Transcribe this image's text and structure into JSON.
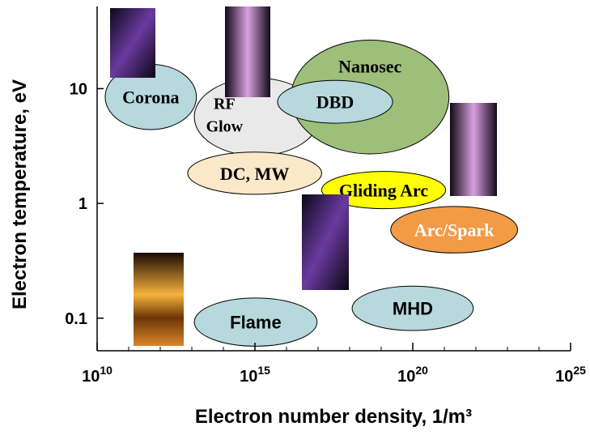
{
  "chart_data": {
    "type": "region",
    "x_label": "Electron number density, 1/m³",
    "y_label": "Electron temperature, eV",
    "log_x": true,
    "log_y": true,
    "xlim": [
      10000000000,
      10000000000000000000000000
    ],
    "ylim": [
      0.052,
      52
    ],
    "xticks": [
      {
        "value": 10000000000,
        "label": "10",
        "exponent": "10"
      },
      {
        "value": 1000000000000000,
        "label": "10",
        "exponent": "15"
      },
      {
        "value": 100000000000000000000,
        "label": "10",
        "exponent": "20"
      },
      {
        "value": 10000000000000000000000000,
        "label": "10",
        "exponent": "25"
      }
    ],
    "xminorticks": [
      100000000000.0,
      1000000000000.0,
      10000000000000.0,
      100000000000000.0,
      1e+16,
      1e+17,
      1e+18,
      1e+19,
      1e+21,
      1e+22,
      1e+23,
      1e+24
    ],
    "yticks": [
      0.1,
      1,
      10
    ],
    "regions": [
      {
        "label": "Corona",
        "x": [
          18000000000.0,
          14000000000000.0
        ],
        "y": [
          4.4,
          16.3
        ],
        "color": "#b7d8dd",
        "font": "serif"
      },
      {
        "label": [
          "RF",
          "Glow"
        ],
        "x": [
          12000000000000.0,
          1.1e+17
        ],
        "y": [
          2.6,
          12.4
        ],
        "color": "#e9e9e9",
        "font": "serif"
      },
      {
        "label": "Nanosec",
        "x": [
          1.4e+16,
          1.4e+21
        ],
        "y": [
          2.7,
          26.5
        ],
        "color": "#9ebf7a",
        "font": "serif"
      },
      {
        "label": "DBD",
        "x": [
          5200000000000000.0,
          2.3e+19
        ],
        "y": [
          5.0,
          11.8
        ],
        "color": "#b7d8dd",
        "font": "serif"
      },
      {
        "label": "DC, MW",
        "x": [
          7400000000000.0,
          1.3e+17
        ],
        "y": [
          1.2,
          2.8
        ],
        "color": "#fbe8c8",
        "font": "serif"
      },
      {
        "label": "Gliding Arc",
        "x": [
          1.3e+17,
          1.1e+21
        ],
        "y": [
          0.9,
          1.9
        ],
        "color": "#ffff00",
        "font": "serif"
      },
      {
        "label": "Arc/Spark",
        "x": [
          2e+19,
          2.1e+23
        ],
        "y": [
          0.37,
          0.94
        ],
        "color": "#f29a45",
        "font": "serif"
      },
      {
        "label": "Flame",
        "x": [
          12000000000000.0,
          9.3e+16
        ],
        "y": [
          0.057,
          0.15
        ],
        "color": "#b7d8dd",
        "font": "sans"
      },
      {
        "label": "MHD",
        "x": [
          1.2e+18,
          8.3e+21
        ],
        "y": [
          0.078,
          0.19
        ],
        "color": "#b7d8dd",
        "font": "sans"
      }
    ]
  }
}
